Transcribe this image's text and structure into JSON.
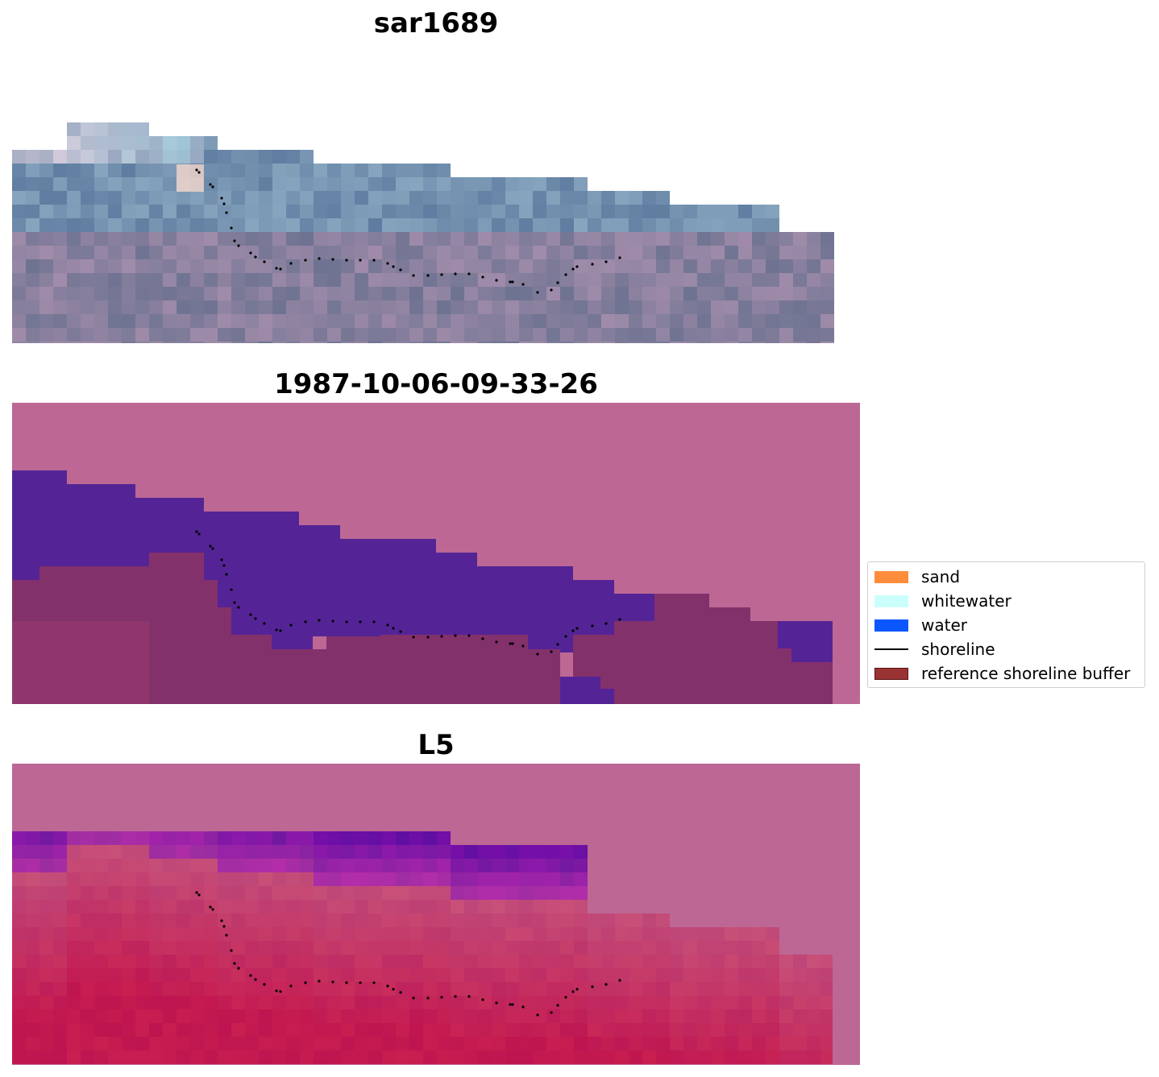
{
  "panels": [
    {
      "id": "rgb",
      "title": "sar1689"
    },
    {
      "id": "class",
      "title": "1987-10-06-09-33-26"
    },
    {
      "id": "index",
      "title": "L5"
    }
  ],
  "legend": {
    "items": [
      {
        "label": "sand",
        "color": "#ff8c3a",
        "kind": "patch"
      },
      {
        "label": "whitewater",
        "color": "#cbfffb",
        "kind": "patch"
      },
      {
        "label": "water",
        "color": "#0b57ff",
        "kind": "patch"
      },
      {
        "label": "shoreline",
        "color": "#000000",
        "kind": "line"
      },
      {
        "label": "reference shoreline buffer",
        "color": "#993333",
        "kind": "patch"
      }
    ]
  },
  "colors": {
    "land_overlay": "#bd6794",
    "water_class": "#542496",
    "buffer": "#83316b",
    "ocean": "#6c7699"
  }
}
